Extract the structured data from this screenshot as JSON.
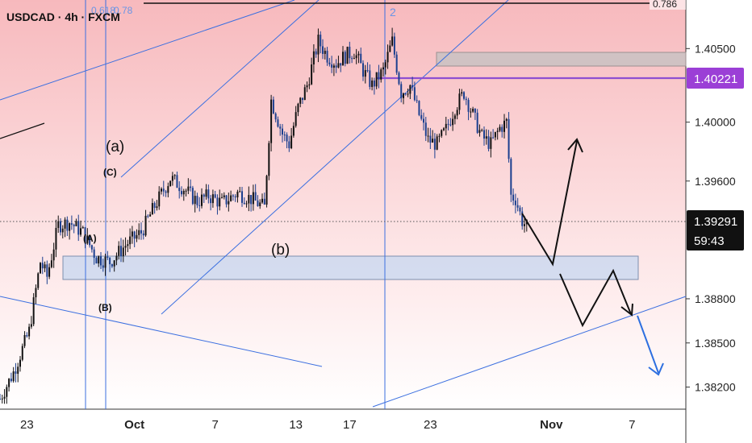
{
  "header": {
    "symbol_title": "USDCAD · 4h · FXCM"
  },
  "colors": {
    "bull": "#111111",
    "bear": "#1b3f8f",
    "trendline": "#3b6fe0",
    "resistance": "#8e4fd1",
    "zone_fill": "#c6d7f0",
    "supply_fill": "#c9c2c2",
    "price_tag": "#9b3fd6",
    "countdown_bg": "#111111"
  },
  "price_tags": {
    "current_price": "1.39291",
    "countdown": "59:43",
    "resistance_price": "1.40221"
  },
  "fib_labels": {
    "top_level": "0.786",
    "left_pair": "0.618",
    "left_pair_b": "0.78",
    "vertical_mark": "2"
  },
  "wave_labels": {
    "a_small": "(a)",
    "c_cap": "(C)",
    "a_cap": "(A)",
    "b_cap": "(B)",
    "b_small": "(b)"
  },
  "chart_data": {
    "type": "candlestick",
    "title": "USDCAD · 4h · FXCM",
    "y_axis": {
      "ticks": [
        "1.40500",
        "1.40000",
        "1.39600",
        "1.38800",
        "1.38500",
        "1.38200"
      ],
      "ylim": [
        1.3805,
        1.4083
      ]
    },
    "x_axis": {
      "ticks": [
        "23",
        "Oct",
        "7",
        "13",
        "17",
        "23",
        "Nov",
        "7"
      ],
      "xlim": [
        "2023-09-21",
        "2023-11-11"
      ]
    },
    "grid": false,
    "close_path": [
      [
        "2023-09-21T00:00",
        1.3812
      ],
      [
        "2023-09-22T00:00",
        1.383
      ],
      [
        "2023-09-23T04:00",
        1.3858
      ],
      [
        "2023-09-24T00:00",
        1.3905
      ],
      [
        "2023-09-24T12:00",
        1.3895
      ],
      [
        "2023-09-25T08:00",
        1.393
      ],
      [
        "2023-09-26T04:00",
        1.3932
      ],
      [
        "2023-09-27T04:00",
        1.3925
      ],
      [
        "2023-09-28T04:00",
        1.3908
      ],
      [
        "2023-09-29T04:00",
        1.3905
      ],
      [
        "2023-09-30T12:00",
        1.3918
      ],
      [
        "2023-10-01T12:00",
        1.3925
      ],
      [
        "2023-10-02T12:00",
        1.3943
      ],
      [
        "2023-10-03T16:00",
        1.3962
      ],
      [
        "2023-10-04T16:00",
        1.3955
      ],
      [
        "2023-10-05T16:00",
        1.3946
      ],
      [
        "2023-10-06T12:00",
        1.395
      ],
      [
        "2023-10-07T12:00",
        1.3945
      ],
      [
        "2023-10-08T16:00",
        1.3952
      ],
      [
        "2023-10-09T16:00",
        1.3948
      ],
      [
        "2023-10-10T16:00",
        1.3942
      ],
      [
        "2023-10-11T04:00",
        1.4015
      ],
      [
        "2023-10-12T00:00",
        1.3992
      ],
      [
        "2023-10-12T12:00",
        1.3985
      ],
      [
        "2023-10-13T04:00",
        1.401
      ],
      [
        "2023-10-13T20:00",
        1.4025
      ],
      [
        "2023-10-14T16:00",
        1.4055
      ],
      [
        "2023-10-15T08:00",
        1.4045
      ],
      [
        "2023-10-16T00:00",
        1.404
      ],
      [
        "2023-10-16T16:00",
        1.4045
      ],
      [
        "2023-10-17T08:00",
        1.4048
      ],
      [
        "2023-10-18T00:00",
        1.4035
      ],
      [
        "2023-10-18T16:00",
        1.4025
      ],
      [
        "2023-10-19T12:00",
        1.4035
      ],
      [
        "2023-10-20T04:00",
        1.4055
      ],
      [
        "2023-10-20T20:00",
        1.402
      ],
      [
        "2023-10-21T12:00",
        1.4025
      ],
      [
        "2023-10-22T04:00",
        1.4005
      ],
      [
        "2023-10-22T20:00",
        1.3988
      ],
      [
        "2023-10-23T12:00",
        1.3985
      ],
      [
        "2023-10-24T04:00",
        1.3995
      ],
      [
        "2023-10-24T20:00",
        1.401
      ],
      [
        "2023-10-25T12:00",
        1.402
      ],
      [
        "2023-10-26T04:00",
        1.4005
      ],
      [
        "2023-10-26T20:00",
        1.399
      ],
      [
        "2023-10-27T12:00",
        1.3985
      ],
      [
        "2023-10-28T04:00",
        1.3996
      ],
      [
        "2023-10-28T16:00",
        1.4
      ],
      [
        "2023-10-29T00:00",
        1.395
      ],
      [
        "2023-10-29T08:00",
        1.3948
      ],
      [
        "2023-10-29T20:00",
        1.3933
      ],
      [
        "2023-10-30T04:00",
        1.3929
      ]
    ]
  }
}
